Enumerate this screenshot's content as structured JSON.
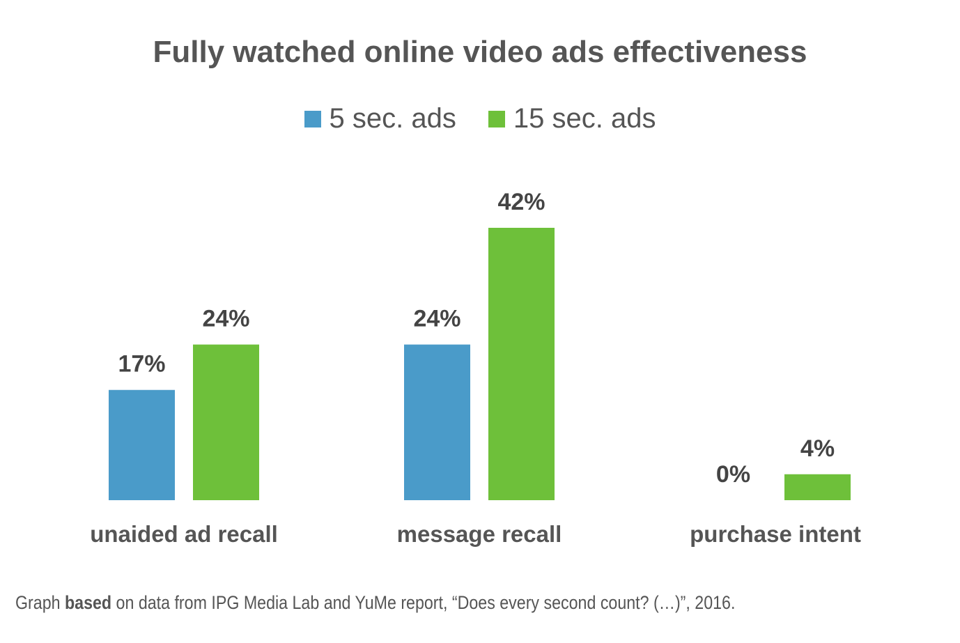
{
  "chart_data": {
    "type": "bar",
    "title": "Fully watched online video ads effectiveness",
    "categories": [
      "unaided ad recall",
      "message recall",
      "purchase intent"
    ],
    "series": [
      {
        "name": "5 sec. ads",
        "color": "#4a9bc9",
        "values": [
          17,
          24,
          0
        ]
      },
      {
        "name": "15 sec. ads",
        "color": "#6ec03a",
        "values": [
          24,
          42,
          4
        ]
      }
    ],
    "data_labels": [
      [
        "17%",
        "24%",
        "0%"
      ],
      [
        "24%",
        "42%",
        "4%"
      ]
    ],
    "xlabel": "",
    "ylabel": "",
    "ylim": [
      0,
      42
    ],
    "legend": "top-center",
    "grid": false
  },
  "footnote": {
    "pre": "Graph ",
    "bold": "based",
    "post": " on data from IPG Media Lab and YuMe report, “Does every second count? (…)”, 2016."
  }
}
